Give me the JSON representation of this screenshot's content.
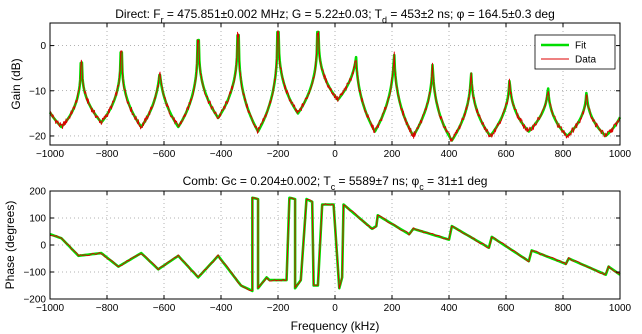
{
  "chart_data": [
    {
      "type": "line",
      "title": {
        "parts": [
          {
            "t": "Direct: F"
          },
          {
            "t": "r",
            "sub": true
          },
          {
            "t": " = 475.851±0.002 MHz; G = 5.22±0.03; T"
          },
          {
            "t": "d",
            "sub": true
          },
          {
            "t": " = 453±2 ns; φ = 164.5±0.3 deg"
          }
        ]
      },
      "xlabel": "",
      "ylabel": "Gain (dB)",
      "xlim": [
        -1000,
        1000
      ],
      "ylim": [
        -22,
        5
      ],
      "xticks": [
        -1000,
        -800,
        -600,
        -400,
        -200,
        0,
        200,
        400,
        600,
        800,
        1000
      ],
      "yticks": [
        0,
        -10,
        -20
      ],
      "ytick_labels": [
        "0",
        "−10",
        "−20"
      ],
      "xtick_labels": [
        "−1000",
        "−800",
        "−600",
        "−400",
        "−200",
        "0",
        "200",
        "400",
        "600",
        "800",
        "1000"
      ],
      "grid": true,
      "legend": {
        "placement": "top-right",
        "entries": [
          {
            "name": "Fit",
            "color": "#00dd00"
          },
          {
            "name": "Data",
            "color": "#dd0000"
          }
        ]
      },
      "model": {
        "kind": "scallop",
        "nulls": [
          -960,
          -820,
          -680,
          -550,
          -410,
          -270,
          -130,
          10,
          140,
          275,
          410,
          545,
          680,
          815,
          950
        ],
        "null_depths": [
          -18,
          -17,
          -18,
          -18,
          -16,
          -19,
          -15,
          -12,
          -19,
          -20,
          -21,
          -20,
          -19,
          -20,
          -20
        ],
        "envelope_x": [
          -1000,
          -800,
          -600,
          -400,
          -200,
          0,
          200,
          400,
          600,
          800,
          1000
        ],
        "envelope_y": [
          -6,
          -2,
          0,
          2,
          3,
          3,
          2,
          -2,
          -5,
          -8,
          -9
        ]
      },
      "series": [
        {
          "name": "Fit",
          "color": "#00dd00"
        },
        {
          "name": "Data",
          "color": "#dd0000"
        }
      ]
    },
    {
      "type": "line",
      "title": {
        "parts": [
          {
            "t": "Comb: Gc = 0.204±0.002; T"
          },
          {
            "t": "c",
            "sub": true
          },
          {
            "t": " = 5589±7 ns; φ"
          },
          {
            "t": "c",
            "sub": true
          },
          {
            "t": " = 31±1 deg"
          }
        ]
      },
      "xlabel": "Frequency (kHz)",
      "ylabel": "Phase (degrees)",
      "xlim": [
        -1000,
        1000
      ],
      "ylim": [
        -200,
        200
      ],
      "xticks": [
        -1000,
        -800,
        -600,
        -400,
        -200,
        0,
        200,
        400,
        600,
        800,
        1000
      ],
      "yticks": [
        200,
        100,
        0,
        -100,
        -200
      ],
      "ytick_labels": [
        "200",
        "100",
        "0",
        "−100",
        "−200"
      ],
      "xtick_labels": [
        "−1000",
        "−800",
        "−600",
        "−400",
        "−200",
        "0",
        "200",
        "400",
        "600",
        "800",
        "1000"
      ],
      "grid": true,
      "model": {
        "kind": "sawtooth",
        "knots": [
          [
            -1000,
            40
          ],
          [
            -960,
            25
          ],
          [
            -900,
            -40
          ],
          [
            -820,
            -30
          ],
          [
            -760,
            -80
          ],
          [
            -680,
            -30
          ],
          [
            -620,
            -90
          ],
          [
            -550,
            -40
          ],
          [
            -480,
            -120
          ],
          [
            -410,
            -40
          ],
          [
            -330,
            -150
          ],
          [
            -290,
            -170
          ],
          [
            -290,
            175
          ],
          [
            -270,
            170
          ],
          [
            -270,
            -160
          ],
          [
            -240,
            -120
          ],
          [
            -230,
            -130
          ],
          [
            -170,
            -130
          ],
          [
            -160,
            175
          ],
          [
            -140,
            170
          ],
          [
            -140,
            -160
          ],
          [
            -120,
            -130
          ],
          [
            -100,
            170
          ],
          [
            -80,
            160
          ],
          [
            -75,
            -150
          ],
          [
            -60,
            -150
          ],
          [
            -45,
            150
          ],
          [
            -5,
            150
          ],
          [
            15,
            -160
          ],
          [
            25,
            -120
          ],
          [
            30,
            150
          ],
          [
            130,
            60
          ],
          [
            145,
            70
          ],
          [
            150,
            110
          ],
          [
            260,
            40
          ],
          [
            275,
            60
          ],
          [
            400,
            20
          ],
          [
            410,
            70
          ],
          [
            540,
            -10
          ],
          [
            550,
            30
          ],
          [
            680,
            -60
          ],
          [
            690,
            -20
          ],
          [
            810,
            -70
          ],
          [
            820,
            -50
          ],
          [
            950,
            -110
          ],
          [
            960,
            -80
          ],
          [
            1000,
            -110
          ]
        ]
      },
      "series": [
        {
          "name": "Fit",
          "color": "#00dd00"
        },
        {
          "name": "Data",
          "color": "#dd0000"
        }
      ]
    }
  ]
}
